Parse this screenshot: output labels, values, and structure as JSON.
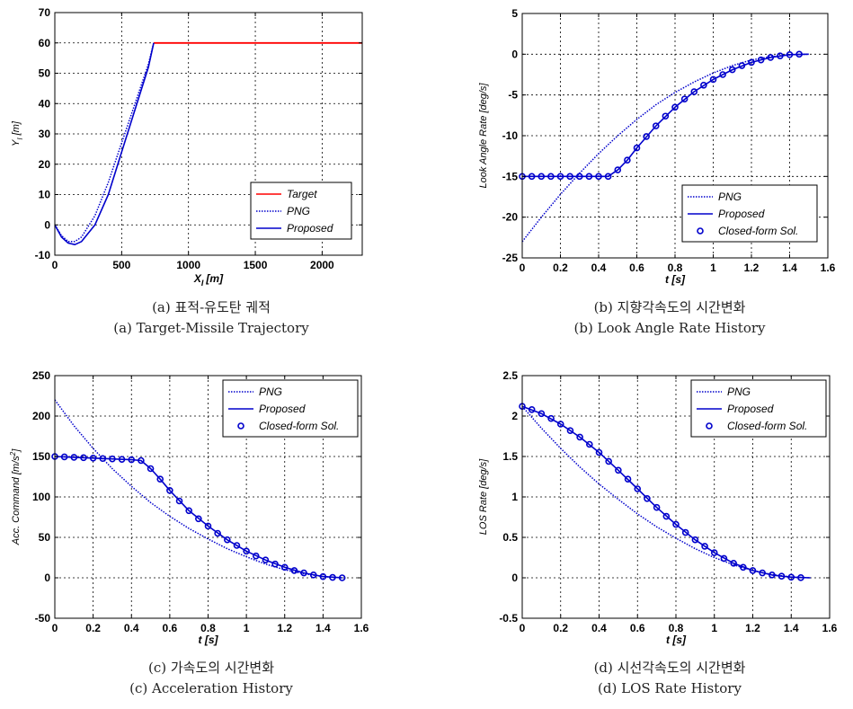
{
  "colors": {
    "target": "#ff0000",
    "series": "#0000cc",
    "grid": "#000000"
  },
  "chart_data": [
    {
      "id": "a",
      "type": "line",
      "xlim": [
        0,
        2300
      ],
      "ylim": [
        -10,
        70
      ],
      "xticks": [
        "0",
        "500",
        "1000",
        "1500",
        "2000"
      ],
      "xtick_values": [
        0,
        500,
        1000,
        1500,
        2000
      ],
      "yticks": [
        "-10",
        "0",
        "10",
        "20",
        "30",
        "40",
        "50",
        "60",
        "70"
      ],
      "ytick_values": [
        -10,
        0,
        10,
        20,
        30,
        40,
        50,
        60,
        70
      ],
      "xlabel_main": "X",
      "xlabel_sub": "I",
      "xlabel_unit": "[m]",
      "ylabel_main": "Y",
      "ylabel_sub": "I",
      "ylabel_unit": "[m]",
      "grid": true,
      "legend_position": "bottom-right",
      "series": [
        {
          "name": "Target",
          "style": "solid-red",
          "x": [
            740,
            800,
            1200,
            1600,
            2000,
            2300
          ],
          "y": [
            60,
            60,
            60,
            60,
            60,
            60
          ]
        },
        {
          "name": "PNG",
          "style": "dotted",
          "x": [
            0,
            50,
            100,
            150,
            200,
            300,
            400,
            500,
            600,
            700,
            740
          ],
          "y": [
            0,
            -3.5,
            -5.5,
            -5.5,
            -4,
            3,
            14,
            27,
            40,
            53,
            60
          ]
        },
        {
          "name": "Proposed",
          "style": "solid",
          "x": [
            0,
            50,
            100,
            150,
            200,
            300,
            400,
            500,
            600,
            700,
            740
          ],
          "y": [
            0,
            -4,
            -6,
            -6.5,
            -5.5,
            0,
            10,
            24,
            38,
            52,
            60
          ]
        }
      ],
      "caption_ko": "(a) 표적-유도탄 궤적",
      "caption_en": "(a) Target-Missile Trajectory"
    },
    {
      "id": "b",
      "type": "line",
      "xlim": [
        0,
        1.6
      ],
      "ylim": [
        -25,
        5
      ],
      "xticks": [
        "0",
        "0.2",
        "0.4",
        "0.6",
        "0.8",
        "1",
        "1.2",
        "1.4",
        "1.6"
      ],
      "xtick_values": [
        0,
        0.2,
        0.4,
        0.6,
        0.8,
        1,
        1.2,
        1.4,
        1.6
      ],
      "yticks": [
        "-25",
        "-20",
        "-15",
        "-10",
        "-5",
        "0",
        "5"
      ],
      "ytick_values": [
        -25,
        -20,
        -15,
        -10,
        -5,
        0,
        5
      ],
      "xlabel": "t [s]",
      "ylabel": "Look Angle Rate [deg/s]",
      "grid": true,
      "legend_position": "bottom-right",
      "series": [
        {
          "name": "PNG",
          "style": "dotted",
          "x": [
            0,
            0.1,
            0.2,
            0.3,
            0.4,
            0.5,
            0.6,
            0.7,
            0.8,
            0.9,
            1.0,
            1.1,
            1.2,
            1.3,
            1.4,
            1.5
          ],
          "y": [
            -23,
            -20,
            -17.2,
            -14.6,
            -12.2,
            -10,
            -8,
            -6.2,
            -4.7,
            -3.4,
            -2.3,
            -1.4,
            -0.7,
            -0.3,
            -0.05,
            0
          ]
        },
        {
          "name": "Proposed",
          "style": "solid",
          "x": [
            0,
            0.1,
            0.2,
            0.3,
            0.4,
            0.45,
            0.5,
            0.55,
            0.6,
            0.7,
            0.8,
            0.9,
            1.0,
            1.1,
            1.2,
            1.3,
            1.4,
            1.5
          ],
          "y": [
            -15,
            -15,
            -15,
            -15,
            -15,
            -15,
            -14.2,
            -13,
            -11.5,
            -8.8,
            -6.5,
            -4.6,
            -3.1,
            -1.9,
            -1.0,
            -0.4,
            -0.05,
            0
          ]
        },
        {
          "name": "Closed-form Sol.",
          "style": "markers",
          "x": [
            0,
            0.05,
            0.1,
            0.15,
            0.2,
            0.25,
            0.3,
            0.35,
            0.4,
            0.45,
            0.5,
            0.55,
            0.6,
            0.65,
            0.7,
            0.75,
            0.8,
            0.85,
            0.9,
            0.95,
            1.0,
            1.05,
            1.1,
            1.15,
            1.2,
            1.25,
            1.3,
            1.35,
            1.4,
            1.45
          ],
          "y": [
            -15,
            -15,
            -15,
            -15,
            -15,
            -15,
            -15,
            -15,
            -15,
            -15,
            -14.2,
            -13,
            -11.5,
            -10.1,
            -8.8,
            -7.6,
            -6.5,
            -5.5,
            -4.6,
            -3.8,
            -3.1,
            -2.5,
            -1.9,
            -1.4,
            -1.0,
            -0.7,
            -0.4,
            -0.2,
            -0.05,
            0
          ]
        }
      ],
      "caption_ko": "(b) 지향각속도의 시간변화",
      "caption_en": "(b) Look Angle Rate History"
    },
    {
      "id": "c",
      "type": "line",
      "xlim": [
        0,
        1.6
      ],
      "ylim": [
        -50,
        250
      ],
      "xticks": [
        "0",
        "0.2",
        "0.4",
        "0.6",
        "0.8",
        "1",
        "1.2",
        "1.4",
        "1.6"
      ],
      "xtick_values": [
        0,
        0.2,
        0.4,
        0.6,
        0.8,
        1,
        1.2,
        1.4,
        1.6
      ],
      "yticks": [
        "-50",
        "0",
        "50",
        "100",
        "150",
        "200",
        "250"
      ],
      "ytick_values": [
        -50,
        0,
        50,
        100,
        150,
        200,
        250
      ],
      "xlabel": "t [s]",
      "ylabel_main": "Acc. Command [m/s",
      "ylabel_sup": "2",
      "ylabel_end": "]",
      "grid": true,
      "legend_position": "top-right",
      "series": [
        {
          "name": "PNG",
          "style": "dotted",
          "x": [
            0,
            0.1,
            0.2,
            0.3,
            0.4,
            0.5,
            0.6,
            0.7,
            0.8,
            0.9,
            1.0,
            1.1,
            1.2,
            1.3,
            1.4,
            1.5
          ],
          "y": [
            220,
            188,
            160,
            135,
            113,
            93,
            76,
            61,
            48,
            36,
            26,
            17,
            10,
            5,
            1.5,
            0
          ]
        },
        {
          "name": "Proposed",
          "style": "solid",
          "x": [
            0,
            0.1,
            0.2,
            0.3,
            0.4,
            0.45,
            0.5,
            0.55,
            0.6,
            0.7,
            0.8,
            0.9,
            1.0,
            1.1,
            1.2,
            1.3,
            1.4,
            1.5
          ],
          "y": [
            150,
            149,
            148,
            147,
            146,
            145,
            135,
            122,
            108,
            83,
            64,
            47,
            33,
            22,
            13,
            6,
            1.5,
            0
          ]
        },
        {
          "name": "Closed-form Sol.",
          "style": "markers",
          "x": [
            0,
            0.05,
            0.1,
            0.15,
            0.2,
            0.25,
            0.3,
            0.35,
            0.4,
            0.45,
            0.5,
            0.55,
            0.6,
            0.65,
            0.7,
            0.75,
            0.8,
            0.85,
            0.9,
            0.95,
            1.0,
            1.05,
            1.1,
            1.15,
            1.2,
            1.25,
            1.3,
            1.35,
            1.4,
            1.45,
            1.5
          ],
          "y": [
            150,
            149.5,
            149,
            148.5,
            148,
            147.5,
            147,
            146.5,
            146,
            145,
            135,
            122,
            108,
            95,
            83,
            73,
            64,
            55,
            47,
            40,
            33,
            27,
            22,
            17,
            13,
            9,
            6,
            3.5,
            1.5,
            0.5,
            0
          ]
        }
      ],
      "caption_ko": "(c) 가속도의 시간변화",
      "caption_en": "(c) Acceleration History"
    },
    {
      "id": "d",
      "type": "line",
      "xlim": [
        0,
        1.6
      ],
      "ylim": [
        -0.5,
        2.5
      ],
      "xticks": [
        "0",
        "0.2",
        "0.4",
        "0.6",
        "0.8",
        "1",
        "1.2",
        "1.4",
        "1.6"
      ],
      "xtick_values": [
        0,
        0.2,
        0.4,
        0.6,
        0.8,
        1,
        1.2,
        1.4,
        1.6
      ],
      "yticks": [
        "-0.5",
        "0",
        "0.5",
        "1",
        "1.5",
        "2",
        "2.5"
      ],
      "ytick_values": [
        -0.5,
        0,
        0.5,
        1,
        1.5,
        2,
        2.5
      ],
      "xlabel": "t [s]",
      "ylabel": "LOS Rate [deg/s]",
      "grid": true,
      "legend_position": "top-right",
      "series": [
        {
          "name": "PNG",
          "style": "dotted",
          "x": [
            0,
            0.1,
            0.2,
            0.3,
            0.4,
            0.5,
            0.6,
            0.7,
            0.8,
            0.9,
            1.0,
            1.1,
            1.2,
            1.3,
            1.4,
            1.5
          ],
          "y": [
            2.12,
            1.85,
            1.6,
            1.37,
            1.16,
            0.97,
            0.79,
            0.63,
            0.49,
            0.36,
            0.25,
            0.16,
            0.09,
            0.04,
            0.01,
            0
          ]
        },
        {
          "name": "Proposed",
          "style": "solid",
          "x": [
            0,
            0.1,
            0.2,
            0.3,
            0.4,
            0.5,
            0.6,
            0.7,
            0.8,
            0.9,
            1.0,
            1.1,
            1.2,
            1.3,
            1.4,
            1.5
          ],
          "y": [
            2.12,
            2.03,
            1.9,
            1.74,
            1.55,
            1.33,
            1.1,
            0.87,
            0.66,
            0.47,
            0.31,
            0.18,
            0.09,
            0.035,
            0.008,
            0
          ]
        },
        {
          "name": "Closed-form Sol.",
          "style": "markers",
          "x": [
            0,
            0.05,
            0.1,
            0.15,
            0.2,
            0.25,
            0.3,
            0.35,
            0.4,
            0.45,
            0.5,
            0.55,
            0.6,
            0.65,
            0.7,
            0.75,
            0.8,
            0.85,
            0.9,
            0.95,
            1.0,
            1.05,
            1.1,
            1.15,
            1.2,
            1.25,
            1.3,
            1.35,
            1.4,
            1.45
          ],
          "y": [
            2.12,
            2.08,
            2.03,
            1.97,
            1.9,
            1.82,
            1.74,
            1.65,
            1.55,
            1.44,
            1.33,
            1.22,
            1.1,
            0.98,
            0.87,
            0.76,
            0.66,
            0.56,
            0.47,
            0.39,
            0.31,
            0.24,
            0.18,
            0.13,
            0.09,
            0.06,
            0.035,
            0.02,
            0.008,
            0.002
          ]
        }
      ],
      "caption_ko": "(d) 시선각속도의 시간변화",
      "caption_en": "(d) LOS Rate History"
    }
  ]
}
